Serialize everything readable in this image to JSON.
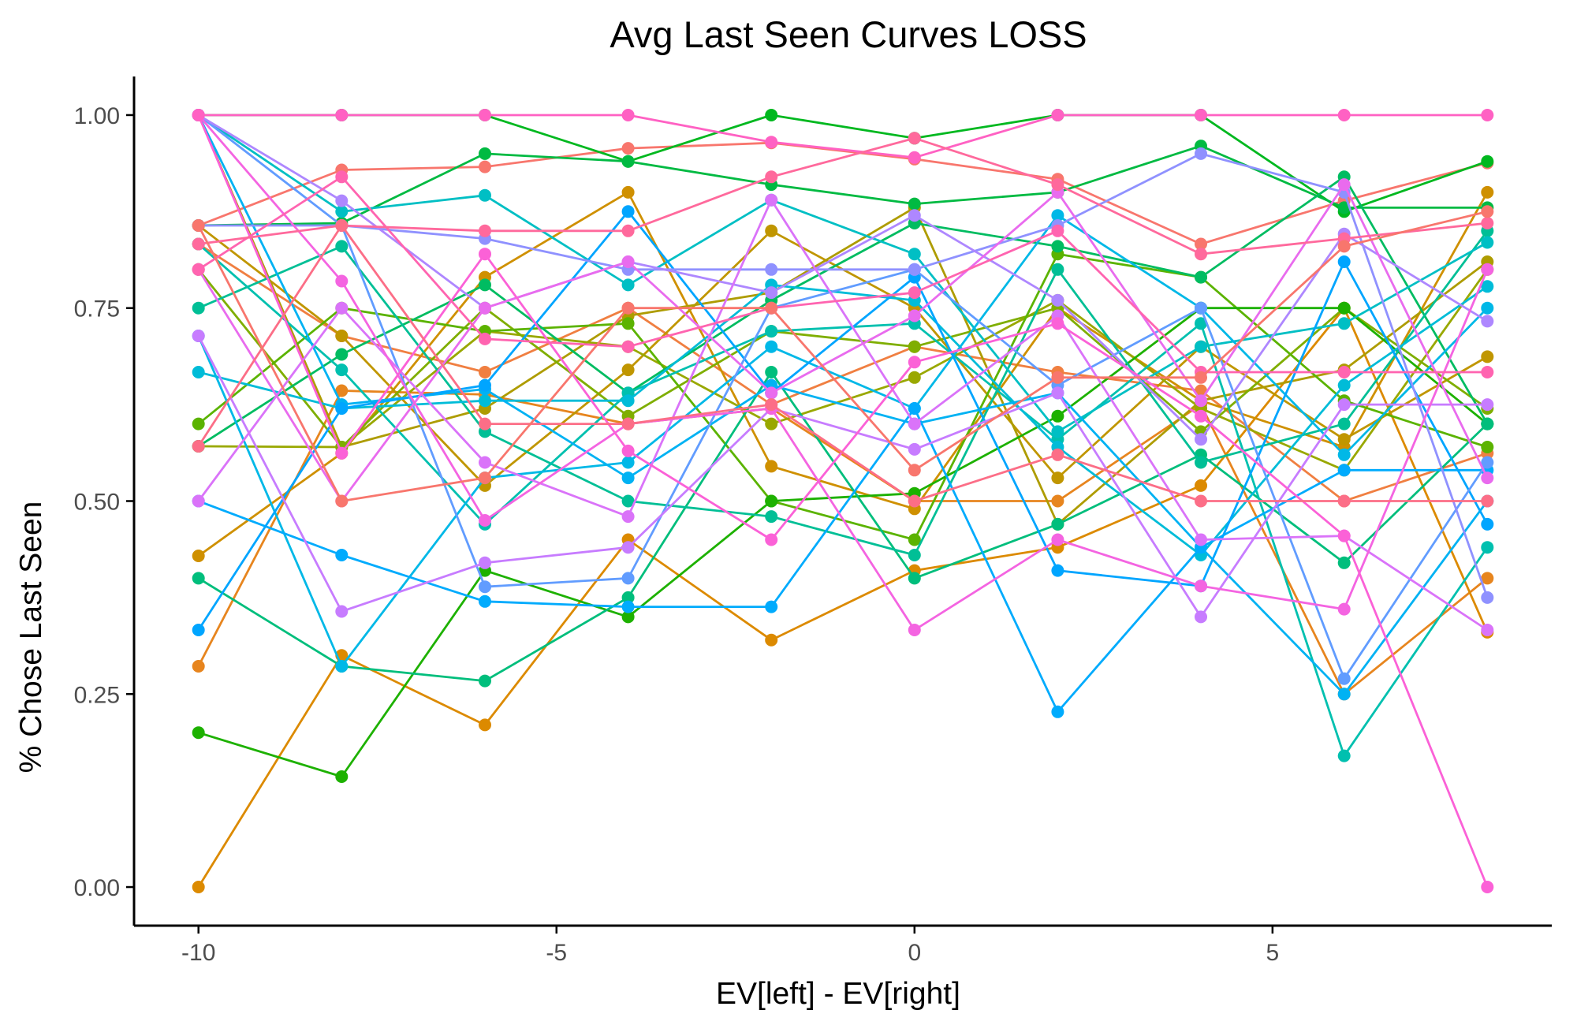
{
  "chart_data": {
    "type": "line",
    "title": "Avg Last Seen Curves LOSS",
    "xlabel": "EV[left] - EV[right]",
    "ylabel": "% Chose Last Seen",
    "x": [
      -10,
      -8,
      -6,
      -4,
      -2,
      0,
      2,
      4,
      6,
      8
    ],
    "xlim": [
      -10.9,
      8.9
    ],
    "ylim": [
      -0.05,
      1.05
    ],
    "xticks": [
      -10,
      -5,
      0,
      5
    ],
    "xtick_labels": [
      "-10",
      "-5",
      "0",
      "5"
    ],
    "yticks": [
      0,
      0.25,
      0.5,
      0.75,
      1.0
    ],
    "ytick_labels": [
      "0.00",
      "0.25",
      "0.50",
      "0.75",
      "1.00"
    ],
    "grid": false,
    "legend": "none",
    "series": [
      {
        "color": "#F8766D",
        "values": [
          0.857,
          0.929,
          0.933,
          0.957,
          0.964,
          0.943,
          0.917,
          0.833,
          0.889,
          0.938
        ]
      },
      {
        "color": "#F07F41",
        "values": [
          0.833,
          0.714,
          0.667,
          0.75,
          0.625,
          0.7,
          0.667,
          0.643,
          0.5,
          0.562
        ]
      },
      {
        "color": "#E7851E",
        "values": [
          0.286,
          0.643,
          0.638,
          0.6,
          0.62,
          0.5,
          0.5,
          0.625,
          0.25,
          0.4
        ]
      },
      {
        "color": "#DC8A00",
        "values": [
          0.0,
          0.3,
          0.21,
          0.45,
          0.32,
          0.41,
          0.44,
          0.52,
          0.75,
          0.33
        ]
      },
      {
        "color": "#CF9000",
        "values": [
          0.429,
          0.562,
          0.79,
          0.9,
          0.545,
          0.49,
          0.75,
          0.63,
          0.57,
          0.9
        ]
      },
      {
        "color": "#C09600",
        "values": [
          0.857,
          0.714,
          0.52,
          0.67,
          0.85,
          0.75,
          0.53,
          0.7,
          0.58,
          0.687
        ]
      },
      {
        "color": "#AE9C00",
        "values": [
          1.0,
          0.57,
          0.62,
          0.74,
          0.77,
          0.88,
          0.47,
          0.63,
          0.67,
          0.81
        ]
      },
      {
        "color": "#99A800",
        "values": [
          0.571,
          0.57,
          0.72,
          0.7,
          0.6,
          0.66,
          0.76,
          0.62,
          0.54,
          0.8
        ]
      },
      {
        "color": "#7FAE00",
        "values": [
          0.8,
          0.57,
          0.75,
          0.61,
          0.72,
          0.7,
          0.75,
          0.59,
          0.75,
          0.62
        ]
      },
      {
        "color": "#5BB300",
        "values": [
          0.6,
          0.75,
          0.72,
          0.73,
          0.5,
          0.45,
          0.82,
          0.79,
          0.63,
          0.57
        ]
      },
      {
        "color": "#1DB100",
        "values": [
          0.2,
          0.143,
          0.41,
          0.35,
          0.5,
          0.51,
          0.61,
          0.75,
          0.75,
          0.6
        ]
      },
      {
        "color": "#00B81F",
        "values": [
          1.0,
          1.0,
          1.0,
          0.94,
          1.0,
          0.97,
          1.0,
          1.0,
          0.875,
          0.94
        ]
      },
      {
        "color": "#00BA42",
        "values": [
          0.857,
          0.86,
          0.95,
          0.94,
          0.91,
          0.885,
          0.9,
          0.96,
          0.88,
          0.88
        ]
      },
      {
        "color": "#00BC61",
        "values": [
          0.571,
          0.69,
          0.78,
          0.64,
          0.76,
          0.86,
          0.83,
          0.79,
          0.92,
          0.6
        ]
      },
      {
        "color": "#00BE7C",
        "values": [
          0.4,
          0.286,
          0.267,
          0.375,
          0.667,
          0.4,
          0.47,
          0.56,
          0.42,
          0.6
        ]
      },
      {
        "color": "#00BF96",
        "values": [
          0.75,
          0.83,
          0.59,
          0.5,
          0.48,
          0.43,
          0.8,
          0.55,
          0.6,
          0.85
        ]
      },
      {
        "color": "#00C0AF",
        "values": [
          0.833,
          0.67,
          0.47,
          0.64,
          0.72,
          0.73,
          0.58,
          0.73,
          0.17,
          0.44
        ]
      },
      {
        "color": "#00BFC4",
        "values": [
          1.0,
          0.875,
          0.896,
          0.78,
          0.89,
          0.82,
          0.59,
          0.7,
          0.73,
          0.835
        ]
      },
      {
        "color": "#00BCD8",
        "values": [
          0.667,
          0.62,
          0.63,
          0.63,
          0.78,
          0.76,
          0.57,
          0.43,
          0.65,
          0.778
        ]
      },
      {
        "color": "#00B8E7",
        "values": [
          0.714,
          0.286,
          0.53,
          0.55,
          0.7,
          0.62,
          0.87,
          0.75,
          0.56,
          0.75
        ]
      },
      {
        "color": "#00B2F3",
        "values": [
          1.0,
          0.625,
          0.645,
          0.53,
          0.65,
          0.6,
          0.64,
          0.44,
          0.25,
          0.5
        ]
      },
      {
        "color": "#00ABFD",
        "values": [
          0.5,
          0.43,
          0.37,
          0.363,
          0.363,
          0.62,
          0.227,
          0.44,
          0.54,
          0.54
        ]
      },
      {
        "color": "#00A5FF",
        "values": [
          0.333,
          0.62,
          0.65,
          0.875,
          0.64,
          0.79,
          0.41,
          0.39,
          0.81,
          0.47
        ]
      },
      {
        "color": "#619CFF",
        "values": [
          1.0,
          0.857,
          0.389,
          0.4,
          0.75,
          0.8,
          0.65,
          0.75,
          0.27,
          0.55
        ]
      },
      {
        "color": "#8F91FF",
        "values": [
          0.857,
          0.857,
          0.84,
          0.8,
          0.8,
          0.8,
          0.857,
          0.95,
          0.9,
          0.375
        ]
      },
      {
        "color": "#AE87FF",
        "values": [
          1.0,
          0.889,
          0.75,
          0.81,
          0.77,
          0.87,
          0.76,
          0.58,
          0.846,
          0.733
        ]
      },
      {
        "color": "#C77CFF",
        "values": [
          0.714,
          0.357,
          0.42,
          0.44,
          0.62,
          0.567,
          0.64,
          0.35,
          0.625,
          0.625
        ]
      },
      {
        "color": "#DA73F9",
        "values": [
          0.5,
          0.75,
          0.55,
          0.48,
          0.89,
          0.6,
          0.74,
          0.45,
          0.455,
          0.333
        ]
      },
      {
        "color": "#E96BEE",
        "values": [
          0.8,
          0.5,
          0.75,
          0.81,
          0.64,
          0.74,
          0.9,
          0.63,
          0.91,
          0.53
        ]
      },
      {
        "color": "#F464E1",
        "values": [
          1.0,
          0.785,
          0.475,
          0.6,
          0.62,
          0.333,
          0.45,
          0.39,
          0.36,
          0.8
        ]
      },
      {
        "color": "#FB61D7",
        "values": [
          1.0,
          0.562,
          0.82,
          0.565,
          0.45,
          0.68,
          0.73,
          0.61,
          0.455,
          0.0
        ]
      },
      {
        "color": "#FF61C3",
        "values": [
          1.0,
          1.0,
          1.0,
          1.0,
          0.965,
          0.945,
          1.0,
          1.0,
          1.0,
          1.0
        ]
      },
      {
        "color": "#FF64B0",
        "values": [
          0.8,
          0.92,
          0.71,
          0.7,
          0.75,
          0.77,
          0.85,
          0.667,
          0.667,
          0.667
        ]
      },
      {
        "color": "#FF699C",
        "values": [
          0.833,
          0.857,
          0.85,
          0.85,
          0.92,
          0.97,
          0.91,
          0.82,
          0.84,
          0.86
        ]
      },
      {
        "color": "#FC6E87",
        "values": [
          0.571,
          0.857,
          0.6,
          0.6,
          0.625,
          0.5,
          0.56,
          0.5,
          0.5,
          0.5
        ]
      },
      {
        "color": "#F8766D",
        "values": [
          0.857,
          0.5,
          0.53,
          0.75,
          0.75,
          0.54,
          0.66,
          0.66,
          0.83,
          0.875
        ]
      }
    ]
  }
}
